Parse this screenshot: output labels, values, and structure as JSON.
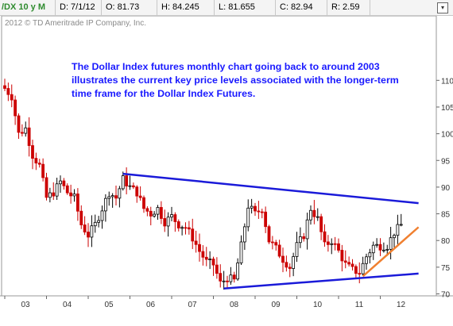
{
  "header": {
    "symbol": "/DX 10 y M",
    "date": "D: 7/1/12",
    "open": "O: 81.73",
    "high": "H: 84.245",
    "low": "L: 81.655",
    "close": "C: 82.94",
    "range": "R: 2.59",
    "menu_icon": "dropdown-menu-icon"
  },
  "copyright": "2012 © TD Ameritrade IP Company, Inc.",
  "annotation": "The Dollar Index futures monthly chart going back to around 2003 illustrates the current key price levels associated with the longer-term time frame for the Dollar Index Futures.",
  "colors": {
    "up_candle": "#000000",
    "down_candle": "#cc0000",
    "trendline": "#1a1ad9",
    "support_line": "#f08030",
    "symbol_text": "#2e8b2e",
    "annotation_text": "#1a1aff"
  },
  "chart_data": {
    "type": "candlestick",
    "interval": "monthly",
    "x_tick_labels": [
      "03",
      "04",
      "05",
      "06",
      "07",
      "08",
      "09",
      "10",
      "11",
      "12"
    ],
    "y_tick_labels": [
      "70",
      "75",
      "80",
      "85",
      "90",
      "95",
      "100",
      "105",
      "110"
    ],
    "ylim": [
      70,
      111
    ],
    "y_axis_side": "right",
    "price_path": [
      [
        "2003-01",
        108.5
      ],
      [
        "2003-03",
        107
      ],
      [
        "2003-05",
        100
      ],
      [
        "2003-07",
        101
      ],
      [
        "2003-09",
        96
      ],
      [
        "2003-11",
        94
      ],
      [
        "2004-01",
        88
      ],
      [
        "2004-03",
        89
      ],
      [
        "2004-05",
        91
      ],
      [
        "2004-07",
        89
      ],
      [
        "2004-09",
        88
      ],
      [
        "2004-11",
        83
      ],
      [
        "2005-01",
        81
      ],
      [
        "2005-03",
        83
      ],
      [
        "2005-05",
        86
      ],
      [
        "2005-07",
        89
      ],
      [
        "2005-09",
        88
      ],
      [
        "2005-11",
        91.5
      ],
      [
        "2006-01",
        90
      ],
      [
        "2006-03",
        89
      ],
      [
        "2006-05",
        86
      ],
      [
        "2006-07",
        85
      ],
      [
        "2006-09",
        86
      ],
      [
        "2006-11",
        83.5
      ],
      [
        "2007-01",
        84.5
      ],
      [
        "2007-03",
        83
      ],
      [
        "2007-05",
        82.5
      ],
      [
        "2007-07",
        80.5
      ],
      [
        "2007-09",
        78
      ],
      [
        "2007-11",
        76
      ],
      [
        "2008-01",
        75.5
      ],
      [
        "2008-03",
        72
      ],
      [
        "2008-05",
        73
      ],
      [
        "2008-07",
        72.5
      ],
      [
        "2008-09",
        79
      ],
      [
        "2008-11",
        86.5
      ],
      [
        "2009-01",
        85
      ],
      [
        "2009-03",
        86
      ],
      [
        "2009-05",
        80
      ],
      [
        "2009-07",
        78.5
      ],
      [
        "2009-09",
        76.5
      ],
      [
        "2009-11",
        75
      ],
      [
        "2010-01",
        79
      ],
      [
        "2010-03",
        81
      ],
      [
        "2010-05",
        86
      ],
      [
        "2010-07",
        84
      ],
      [
        "2010-09",
        79
      ],
      [
        "2010-11",
        80
      ],
      [
        "2011-01",
        78
      ],
      [
        "2011-03",
        75.5
      ],
      [
        "2011-05",
        74.5
      ],
      [
        "2011-07",
        74
      ],
      [
        "2011-09",
        77
      ],
      [
        "2011-11",
        79
      ],
      [
        "2012-01",
        79
      ],
      [
        "2012-03",
        79
      ],
      [
        "2012-05",
        81.5
      ],
      [
        "2012-07",
        82.9
      ]
    ],
    "trendlines": [
      {
        "name": "upper-resistance",
        "from": [
          "2005-11",
          92.5
        ],
        "to": [
          "2012-12",
          87
        ]
      },
      {
        "name": "lower-support",
        "from": [
          "2008-04",
          71
        ],
        "to": [
          "2012-12",
          73.8
        ]
      },
      {
        "name": "rising-support",
        "from": [
          "2011-08",
          73.3
        ],
        "to": [
          "2012-12",
          82.5
        ]
      }
    ]
  }
}
